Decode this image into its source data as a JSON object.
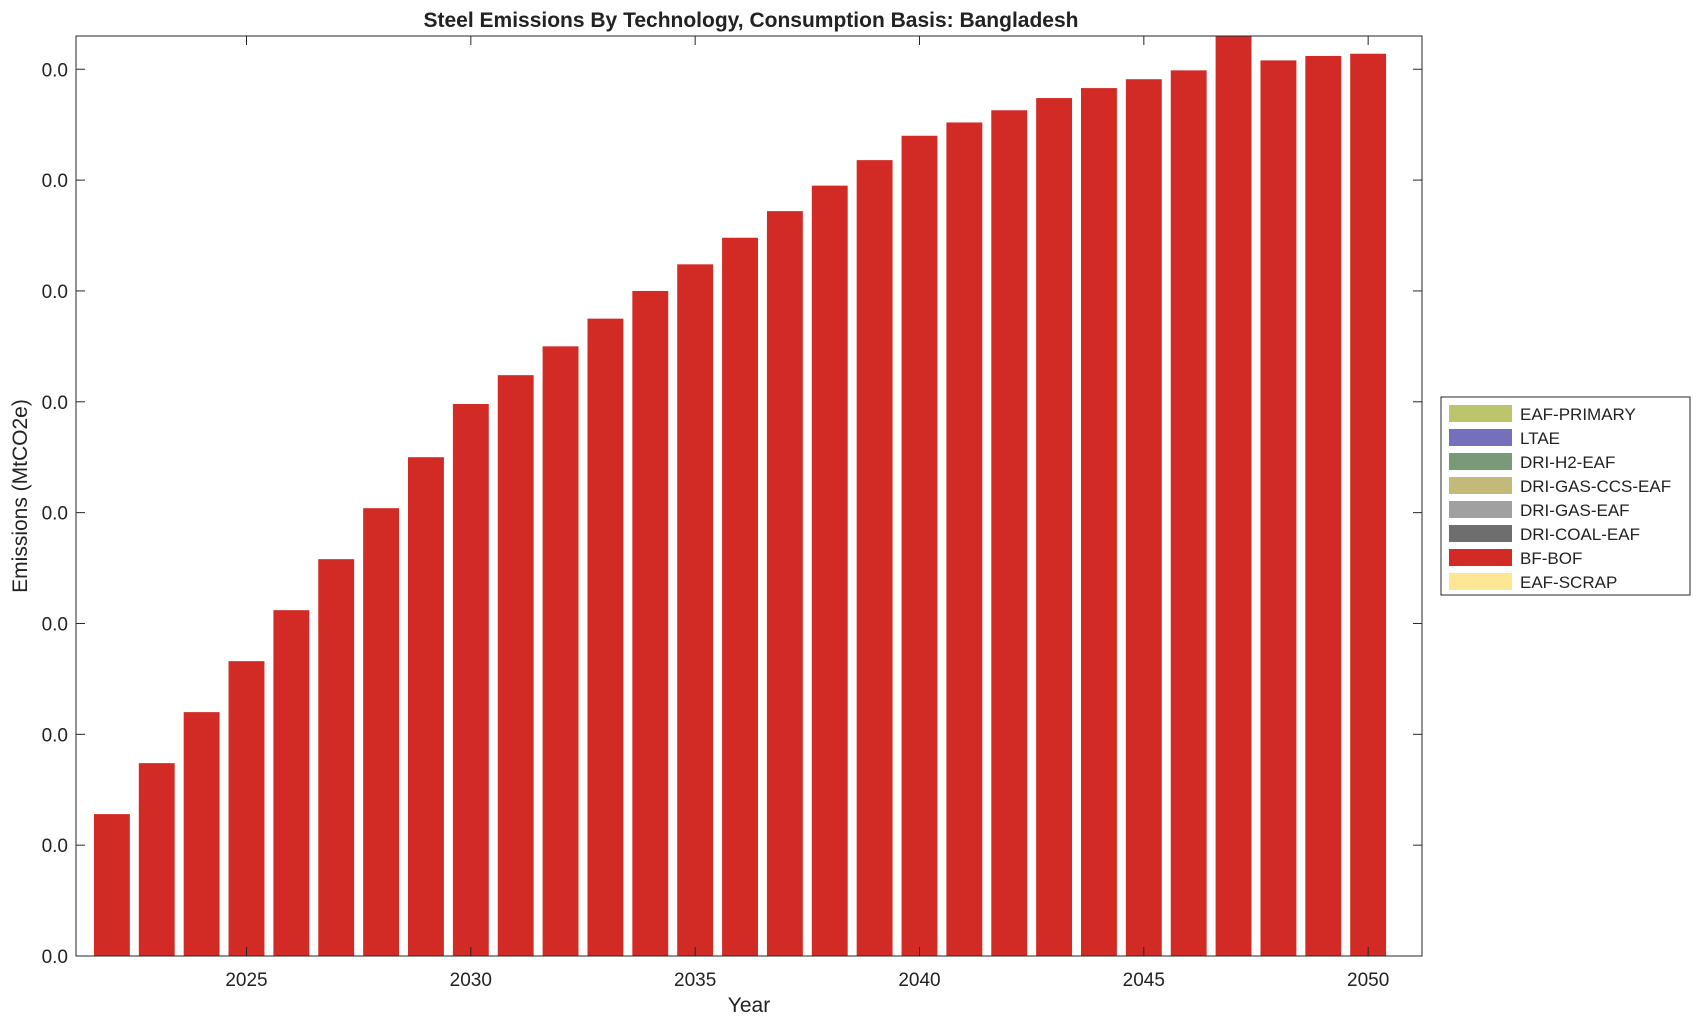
{
  "chart_data": {
    "type": "bar",
    "stacked": true,
    "title": "Steel Emissions By Technology, Consumption Basis: Bangladesh",
    "xlabel": "Year",
    "ylabel": "Emissions (MtCO2e)",
    "x": [
      2022,
      2023,
      2024,
      2025,
      2026,
      2027,
      2028,
      2029,
      2030,
      2031,
      2032,
      2033,
      2034,
      2035,
      2036,
      2037,
      2038,
      2039,
      2040,
      2041,
      2042,
      2043,
      2044,
      2045,
      2046,
      2047,
      2048,
      2049,
      2050
    ],
    "xlim": [
      2021.2,
      2051.2
    ],
    "xticks": [
      2025,
      2030,
      2035,
      2040,
      2045,
      2050
    ],
    "xtick_labels": [
      "2025",
      "2030",
      "2035",
      "2040",
      "2045",
      "2050"
    ],
    "ylim": [
      0,
      0.0083
    ],
    "yticks": [
      0,
      0.001,
      0.002,
      0.003,
      0.004,
      0.005,
      0.006,
      0.007,
      0.008
    ],
    "ytick_labels": [
      "0.0",
      "0.0",
      "0.0",
      "0.0",
      "0.0",
      "0.0",
      "0.0",
      "0.0",
      "0.0"
    ],
    "grid": false,
    "legend_position": "right",
    "series": [
      {
        "name": "EAF-PRIMARY",
        "color": "#bcc56b",
        "values": [
          0,
          0,
          0,
          0,
          0,
          0,
          0,
          0,
          0,
          0,
          0,
          0,
          0,
          0,
          0,
          0,
          0,
          0,
          0,
          0,
          0,
          0,
          0,
          0,
          0,
          0,
          0,
          0,
          0
        ]
      },
      {
        "name": "LTAE",
        "color": "#7570bc",
        "values": [
          0,
          0,
          0,
          0,
          0,
          0,
          0,
          0,
          0,
          0,
          0,
          0,
          0,
          0,
          0,
          0,
          0,
          0,
          0,
          0,
          0,
          0,
          0,
          0,
          0,
          0,
          0,
          0,
          0
        ]
      },
      {
        "name": "DRI-H2-EAF",
        "color": "#789a79",
        "values": [
          0,
          0,
          0,
          0,
          0,
          0,
          0,
          0,
          0,
          0,
          0,
          0,
          0,
          0,
          0,
          0,
          0,
          0,
          0,
          0,
          0,
          0,
          0,
          0,
          0,
          0,
          0,
          0,
          0
        ]
      },
      {
        "name": "DRI-GAS-CCS-EAF",
        "color": "#c3ba7a",
        "values": [
          0,
          0,
          0,
          0,
          0,
          0,
          0,
          0,
          0,
          0,
          0,
          0,
          0,
          0,
          0,
          0,
          0,
          0,
          0,
          0,
          0,
          0,
          0,
          0,
          0,
          0,
          0,
          0,
          0
        ]
      },
      {
        "name": "DRI-GAS-EAF",
        "color": "#a0a0a0",
        "values": [
          0,
          0,
          0,
          0,
          0,
          0,
          0,
          0,
          0,
          0,
          0,
          0,
          0,
          0,
          0,
          0,
          0,
          0,
          0,
          0,
          0,
          0,
          0,
          0,
          0,
          0,
          0,
          0,
          0
        ]
      },
      {
        "name": "DRI-COAL-EAF",
        "color": "#6e6e6e",
        "values": [
          0,
          0,
          0,
          0,
          0,
          0,
          0,
          0,
          0,
          0,
          0,
          0,
          0,
          0,
          0,
          0,
          0,
          0,
          0,
          0,
          0,
          0,
          0,
          0,
          0,
          0,
          0,
          0,
          0
        ]
      },
      {
        "name": "BF-BOF",
        "color": "#d22a25",
        "values": [
          0.00128,
          0.00174,
          0.0022,
          0.00266,
          0.00312,
          0.00358,
          0.00404,
          0.0045,
          0.00498,
          0.00524,
          0.0055,
          0.00575,
          0.006,
          0.00624,
          0.00648,
          0.00672,
          0.00695,
          0.00718,
          0.0074,
          0.00752,
          0.00763,
          0.00774,
          0.00783,
          0.00791,
          0.00799,
          0.0083,
          0.00808,
          0.00812,
          0.00814
        ]
      },
      {
        "name": "EAF-SCRAP",
        "color": "#fde793",
        "values": [
          0,
          0,
          0,
          0,
          0,
          0,
          0,
          0,
          0,
          0,
          0,
          0,
          0,
          0,
          0,
          0,
          0,
          0,
          0,
          0,
          0,
          0,
          0,
          0,
          0,
          0,
          0,
          0,
          0
        ]
      }
    ]
  }
}
